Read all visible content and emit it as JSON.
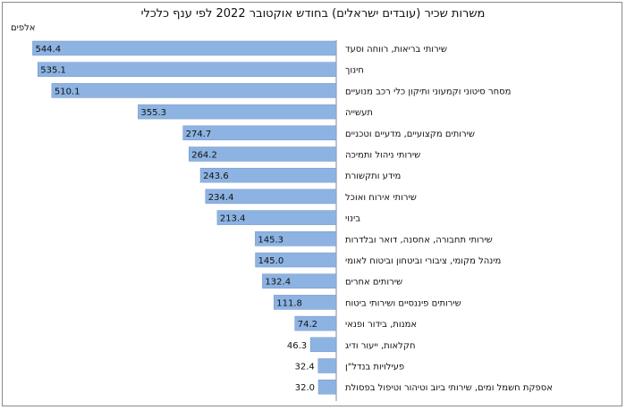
{
  "chart_data": {
    "type": "bar",
    "orientation": "horizontal",
    "title": "משרות שכיר (עובדים ישראלים) בחודש אוקטובר 2022  לפי ענף כלכלי",
    "unit_label": "אלפים",
    "bar_color": "#8db3e2",
    "categories": [
      "שירותי בריאות, רווחה וסעד",
      "חינוך",
      "מסחר סיטוני וקמעוני ותיקון כלי רכב מנועיים",
      "תעשייה",
      "שירותים מקצועיים, מדעיים וטכניים",
      "שירותי ניהול ותמיכה",
      "מידע ותקשורת",
      "שירותי אירוח ואוכל",
      "בינוי",
      "שירותי תחבורה, אחסנה, דואר ובלדרות",
      "מינהל מקומי, ציבורי וביטחון וביטוח לאומי",
      "שירותים אחרים",
      "שירותים פיננסיים ושירותי ביטוח",
      "אמנות, בידור ופנאי",
      "חקלאות, ייעור ודיג",
      "פעילויות בנדל\"ן",
      "אספקת חשמל ומים, שירותי ביוב וטיהור וטיפול בפסולת"
    ],
    "values": [
      544.4,
      535.1,
      510.1,
      355.3,
      274.7,
      264.2,
      243.6,
      234.4,
      213.4,
      145.3,
      145.0,
      132.4,
      111.8,
      74.2,
      46.3,
      32.4,
      32.0
    ],
    "value_labels": [
      "544.4",
      "535.1",
      "510.1",
      "355.3",
      "274.7",
      "264.2",
      "243.6",
      "234.4",
      "213.4",
      "145.3",
      "145.0",
      "132.4",
      "111.8",
      "74.2",
      "46.3",
      "32.4",
      "32.0"
    ],
    "xlim": [
      0,
      550
    ],
    "grid": false,
    "legend": "none"
  }
}
